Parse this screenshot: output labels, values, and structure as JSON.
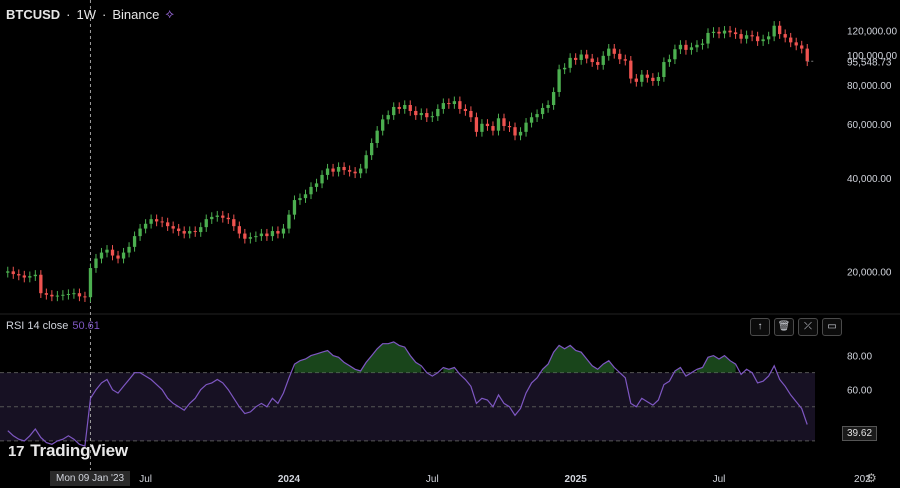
{
  "header": {
    "symbol": "BTCUSD",
    "separator1": "·",
    "interval": "1W",
    "separator2": "·",
    "exchange": "Binance",
    "icon": "indicator-icon"
  },
  "rsi": {
    "label": "RSI 14 close",
    "value": "50.61",
    "last_tag": "39.62",
    "buttons": [
      {
        "icon": "arrow-up-icon",
        "glyph": "↑"
      },
      {
        "icon": "trash-icon",
        "glyph": "🗑"
      },
      {
        "icon": "collapse-icon",
        "glyph": "⤫"
      },
      {
        "icon": "maximize-icon",
        "glyph": "▭"
      }
    ]
  },
  "branding": {
    "mark": "17",
    "name": "TradingView"
  },
  "crosshair": {
    "date_label": "Mon 09 Jan '23"
  },
  "colors": {
    "up": "#26a69a",
    "up_bright": "#4caf50",
    "down": "#ef5350",
    "rsi_line": "#7e57c2",
    "background": "#000000"
  },
  "chart_data": [
    {
      "type": "candlestick",
      "title": "BTCUSD · 1W · Binance",
      "ylim": [
        0,
        130000
      ],
      "y_ticks": [
        "120,000.00",
        "100,000.00",
        "80,000.00",
        "60,000.00",
        "40,000.00",
        "20,000.00"
      ],
      "y_tick_values": [
        120000,
        100000,
        80000,
        60000,
        40000,
        20000
      ],
      "last_price_label": "95,548.73",
      "last_price": 95548.73,
      "x_ticks": [
        "Jul",
        "2024",
        "Jul",
        "2025",
        "Jul",
        "202"
      ],
      "x_tick_weeks": [
        25,
        51,
        77,
        103,
        129,
        155
      ],
      "close": [
        20000,
        19600,
        19400,
        19100,
        19300,
        19500,
        17000,
        16800,
        16600,
        16700,
        16800,
        16900,
        17000,
        16600,
        16500,
        20500,
        22000,
        23000,
        23500,
        22500,
        22000,
        23000,
        24000,
        26000,
        27500,
        28500,
        29500,
        29000,
        28800,
        28000,
        27500,
        27000,
        26500,
        27000,
        26800,
        27800,
        29500,
        30000,
        30300,
        29800,
        29500,
        28000,
        26500,
        25500,
        25800,
        26000,
        26500,
        26000,
        27000,
        26500,
        27500,
        30500,
        34000,
        34500,
        35500,
        37500,
        38500,
        41000,
        43000,
        42000,
        43500,
        42500,
        42000,
        41500,
        43000,
        47500,
        52000,
        57000,
        62000,
        64000,
        68000,
        67000,
        69000,
        66000,
        64000,
        65000,
        63000,
        63500,
        67000,
        70000,
        69500,
        71000,
        67000,
        66000,
        63000,
        56500,
        60000,
        59000,
        57000,
        62500,
        59000,
        58500,
        55000,
        56500,
        60500,
        63000,
        64500,
        67500,
        69000,
        76000,
        90000,
        91000,
        98000,
        96500,
        100500,
        97500,
        95000,
        93000,
        99500,
        105000,
        101000,
        97000,
        96000,
        84000,
        82000,
        86500,
        84500,
        82500,
        85000,
        95000,
        97000,
        104500,
        108000,
        104000,
        106000,
        108000,
        109000,
        118000,
        119000,
        117500,
        120000,
        118500,
        117000,
        113000,
        116000,
        115000,
        111000,
        112500,
        115000,
        124500,
        117000,
        114000,
        110000,
        107500,
        105000,
        95548
      ],
      "rsi": {
        "length": 14,
        "ylim": [
          20,
          95
        ],
        "y_ticks": [
          "80.00",
          "60.00"
        ],
        "y_tick_values": [
          80,
          60
        ],
        "bands": [
          70,
          50,
          30
        ],
        "values": [
          36,
          33,
          31,
          30,
          33,
          37,
          32,
          29,
          28,
          30,
          31,
          33,
          31,
          28,
          27,
          55,
          60,
          64,
          66,
          60,
          58,
          62,
          66,
          70,
          70,
          68,
          66,
          63,
          60,
          55,
          52,
          50,
          48,
          52,
          55,
          60,
          63,
          64,
          66,
          64,
          60,
          55,
          50,
          46,
          47,
          50,
          52,
          50,
          55,
          52,
          58,
          67,
          75,
          77,
          78,
          80,
          81,
          82,
          83,
          80,
          79,
          76,
          74,
          72,
          71,
          76,
          80,
          84,
          87,
          87,
          88,
          86,
          85,
          80,
          76,
          74,
          70,
          68,
          70,
          73,
          72,
          73,
          69,
          66,
          62,
          52,
          55,
          54,
          50,
          57,
          52,
          50,
          45,
          49,
          58,
          64,
          67,
          72,
          75,
          82,
          86,
          84,
          86,
          83,
          82,
          78,
          74,
          72,
          75,
          77,
          73,
          70,
          67,
          52,
          50,
          55,
          53,
          51,
          54,
          63,
          65,
          71,
          73,
          68,
          70,
          72,
          73,
          79,
          80,
          78,
          80,
          77,
          75,
          69,
          72,
          70,
          64,
          65,
          68,
          74,
          66,
          62,
          57,
          53,
          49,
          39.62
        ]
      }
    }
  ]
}
